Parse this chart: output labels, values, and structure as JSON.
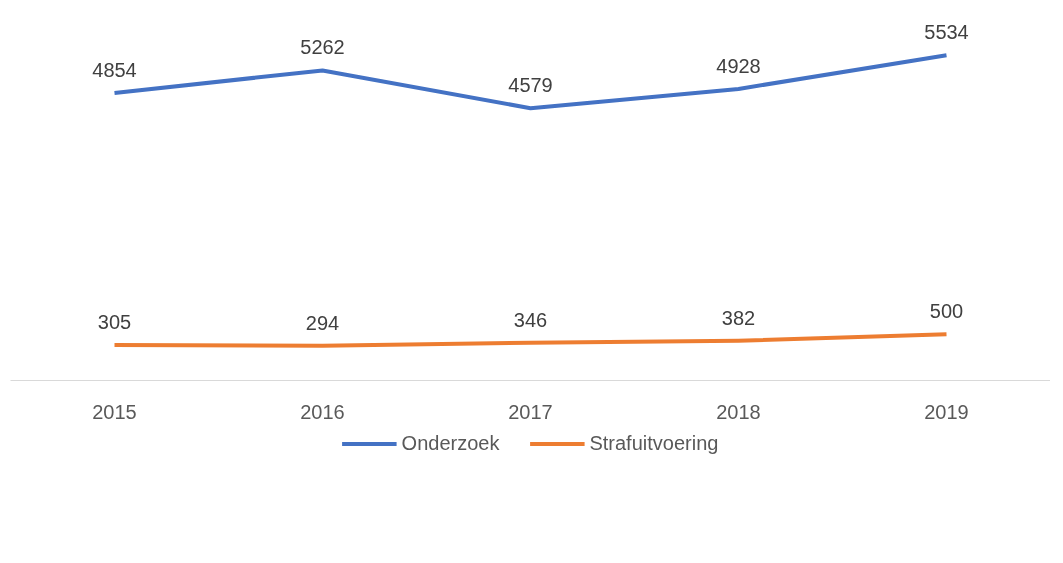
{
  "chart_data": {
    "type": "line",
    "categories": [
      "2015",
      "2016",
      "2017",
      "2018",
      "2019"
    ],
    "series": [
      {
        "name": "Onderzoek",
        "color": "#4472c4",
        "values": [
          4854,
          5262,
          4579,
          4928,
          5534
        ]
      },
      {
        "name": "Strafuitvoering",
        "color": "#ed7d31",
        "values": [
          305,
          294,
          346,
          382,
          500
        ]
      }
    ],
    "tick_labels": "x",
    "data_labels": true,
    "legend": "bottom",
    "grid": false,
    "marker": "none",
    "line_style": "solid"
  }
}
